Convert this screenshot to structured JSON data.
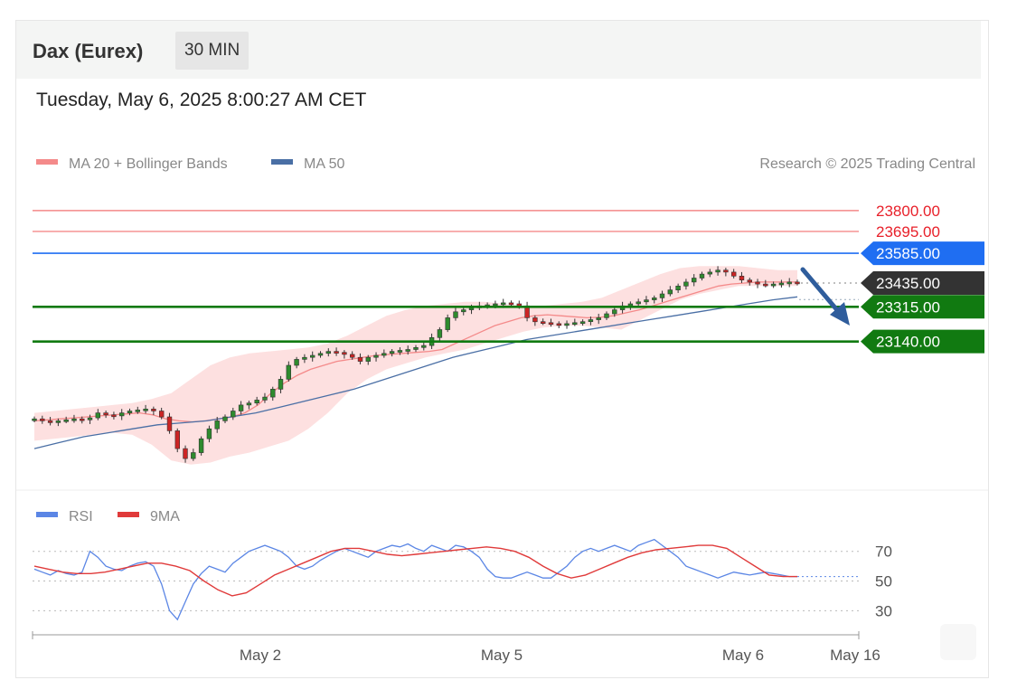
{
  "header": {
    "title": "Dax (Eurex)",
    "interval": "30 MIN"
  },
  "timestamp": "Tuesday, May 6, 2025 8:00:27 AM CET",
  "legend": {
    "ma20_label": "MA 20 + Bollinger Bands",
    "ma50_label": "MA 50",
    "credit": "Research © 2025 Trading Central"
  },
  "rsi_legend": {
    "rsi_label": "RSI",
    "ma9_label": "9MA"
  },
  "colors": {
    "resistance": "#f27272",
    "resistance_text": "#e8202a",
    "pivot_blue": "#1f6ef2",
    "support": "#117a11",
    "current": "#333333",
    "ma20": "#f48a8a",
    "ma50": "#4a6fa5",
    "band_fill": "#fde0e0",
    "candle_up": "#2e8b2e",
    "candle_down": "#cc2424",
    "rsi": "#5b86e5",
    "rsi_ma": "#e03a3a",
    "arrow": "#2f5d9c"
  },
  "chart_data": [
    {
      "type": "candlestick",
      "title": "Dax (Eurex) 30 MIN",
      "x_ticks": [
        "May 2",
        "May 5",
        "May 6",
        "May 16"
      ],
      "ylim": [
        22400,
        23950
      ],
      "levels": [
        {
          "label": "23800.00",
          "value": 23800,
          "kind": "resistance"
        },
        {
          "label": "23695.00",
          "value": 23695,
          "kind": "resistance"
        },
        {
          "label": "23585.00",
          "value": 23585,
          "kind": "pivot"
        },
        {
          "label": "23435.00",
          "value": 23435,
          "kind": "current"
        },
        {
          "label": "23315.00",
          "value": 23315,
          "kind": "support"
        },
        {
          "label": "23140.00",
          "value": 23140,
          "kind": "support"
        }
      ],
      "close_series": [
        22750,
        22740,
        22735,
        22740,
        22745,
        22750,
        22745,
        22755,
        22780,
        22770,
        22765,
        22780,
        22790,
        22795,
        22800,
        22790,
        22760,
        22690,
        22600,
        22550,
        22580,
        22650,
        22700,
        22740,
        22760,
        22790,
        22820,
        22830,
        22845,
        22860,
        22900,
        22950,
        23020,
        23050,
        23060,
        23070,
        23080,
        23090,
        23085,
        23075,
        23060,
        23040,
        23060,
        23070,
        23080,
        23090,
        23095,
        23100,
        23110,
        23120,
        23160,
        23200,
        23260,
        23290,
        23300,
        23310,
        23320,
        23325,
        23330,
        23335,
        23330,
        23320,
        23260,
        23240,
        23235,
        23230,
        23225,
        23230,
        23235,
        23240,
        23250,
        23260,
        23280,
        23300,
        23320,
        23330,
        23340,
        23350,
        23360,
        23380,
        23400,
        23420,
        23440,
        23460,
        23480,
        23490,
        23500,
        23490,
        23470,
        23450,
        23440,
        23430,
        23425,
        23430,
        23435,
        23440,
        23435
      ],
      "ma20_series": [
        22740,
        22745,
        22750,
        22755,
        22760,
        22765,
        22770,
        22775,
        22780,
        22770,
        22750,
        22740,
        22735,
        22740,
        22750,
        22760,
        22780,
        22820,
        22880,
        22930,
        22970,
        23000,
        23020,
        23040,
        23050,
        23060,
        23070,
        23075,
        23080,
        23085,
        23090,
        23100,
        23130,
        23160,
        23190,
        23220,
        23240,
        23260,
        23270,
        23275,
        23270,
        23265,
        23260,
        23262,
        23270,
        23285,
        23300,
        23320,
        23340,
        23360,
        23380,
        23400,
        23420,
        23430,
        23435,
        23440,
        23440,
        23440,
        23440
      ],
      "ma50_series": [
        22600,
        22630,
        22660,
        22680,
        22700,
        22720,
        22730,
        22740,
        22760,
        22780,
        22810,
        22840,
        22870,
        22900,
        22940,
        22980,
        23020,
        23060,
        23090,
        23120,
        23150,
        23170,
        23190,
        23210,
        23230,
        23250,
        23270,
        23290,
        23310,
        23330,
        23350,
        23365
      ],
      "bb_upper": [
        22780,
        22790,
        22800,
        22810,
        22820,
        22830,
        22850,
        22880,
        22950,
        23020,
        23060,
        23080,
        23090,
        23100,
        23110,
        23130,
        23170,
        23220,
        23270,
        23300,
        23320,
        23330,
        23340,
        23340,
        23330,
        23320,
        23320,
        23330,
        23340,
        23360,
        23400,
        23440,
        23480,
        23510,
        23520,
        23520,
        23520,
        23510,
        23500,
        23500
      ],
      "bb_lower": [
        22640,
        22650,
        22660,
        22670,
        22680,
        22670,
        22620,
        22540,
        22520,
        22530,
        22560,
        22580,
        22610,
        22640,
        22700,
        22780,
        22880,
        22950,
        23000,
        23030,
        23060,
        23080,
        23100,
        23130,
        23160,
        23190,
        23210,
        23220,
        23220,
        23210,
        23200,
        23250,
        23300,
        23350,
        23380,
        23400,
        23420,
        23420,
        23420,
        23420
      ]
    },
    {
      "type": "line",
      "title": "RSI",
      "y_ticks": [
        70,
        50,
        30
      ],
      "ylim": [
        18,
        82
      ],
      "series": [
        {
          "name": "RSI",
          "values": [
            58,
            56,
            54,
            57,
            55,
            54,
            56,
            70,
            66,
            60,
            58,
            57,
            60,
            62,
            63,
            60,
            48,
            30,
            24,
            36,
            48,
            55,
            60,
            58,
            56,
            62,
            66,
            70,
            72,
            74,
            72,
            70,
            66,
            60,
            58,
            60,
            64,
            67,
            70,
            72,
            70,
            68,
            66,
            70,
            72,
            74,
            73,
            75,
            72,
            70,
            74,
            72,
            70,
            74,
            73,
            70,
            66,
            58,
            53,
            52,
            52,
            54,
            56,
            54,
            52,
            52,
            56,
            60,
            66,
            70,
            72,
            70,
            72,
            74,
            72,
            70,
            74,
            76,
            78,
            74,
            70,
            66,
            60,
            58,
            56,
            54,
            52,
            54,
            56,
            55,
            54,
            55,
            56,
            55,
            54,
            53,
            53
          ]
        },
        {
          "name": "9MA",
          "values": [
            60,
            58,
            56,
            55,
            55,
            56,
            58,
            60,
            62,
            62,
            60,
            57,
            50,
            44,
            40,
            42,
            48,
            54,
            58,
            62,
            66,
            70,
            72,
            72,
            70,
            68,
            67,
            68,
            69,
            70,
            71,
            72,
            73,
            72,
            70,
            66,
            60,
            55,
            52,
            54,
            58,
            62,
            66,
            69,
            71,
            72,
            73,
            74,
            74,
            72,
            66,
            60,
            54,
            53,
            53
          ]
        }
      ]
    }
  ]
}
